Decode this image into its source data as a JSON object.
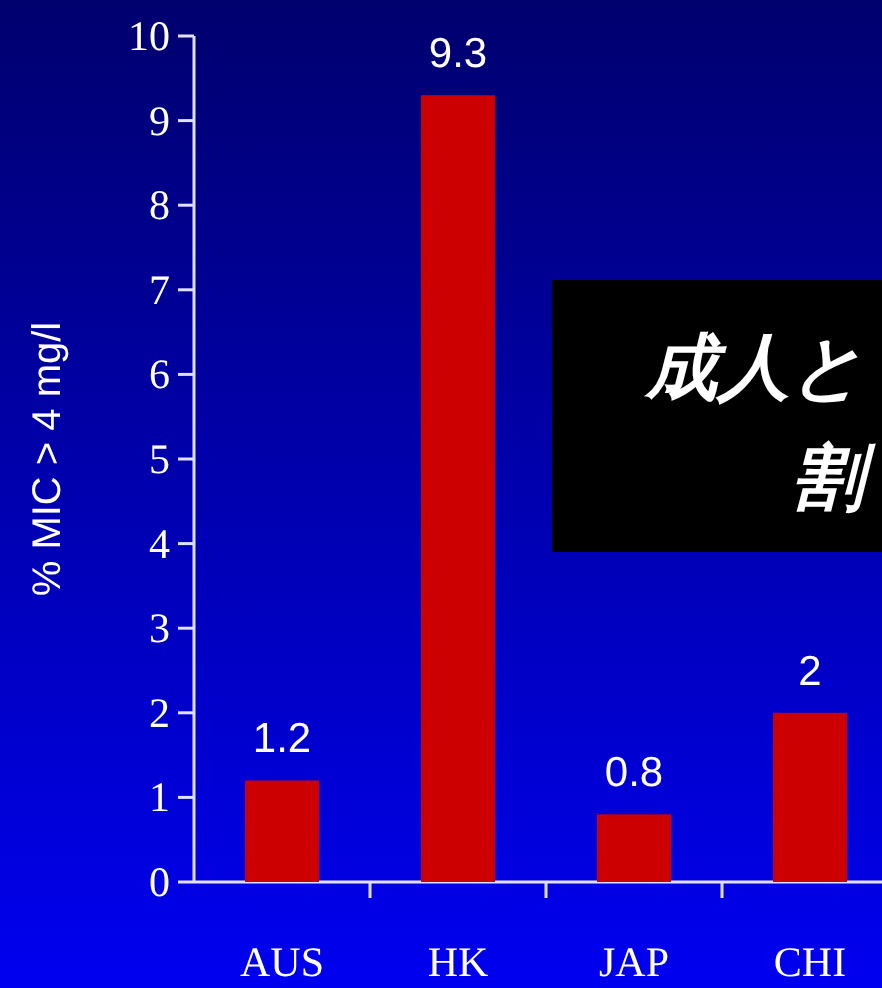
{
  "chart_data": {
    "type": "bar",
    "categories": [
      "AUS",
      "HK",
      "JAP",
      "CHI"
    ],
    "values": [
      1.2,
      9.3,
      0.8,
      2
    ],
    "color": "#cc0000",
    "ylabel": "% MIC > 4 mg/l",
    "ylim": [
      0,
      10
    ],
    "yticks": [
      0,
      1,
      2,
      3,
      4,
      5,
      6,
      7,
      8,
      9,
      10
    ],
    "data_labels": true,
    "annotations": [
      "成人と",
      "割"
    ]
  }
}
